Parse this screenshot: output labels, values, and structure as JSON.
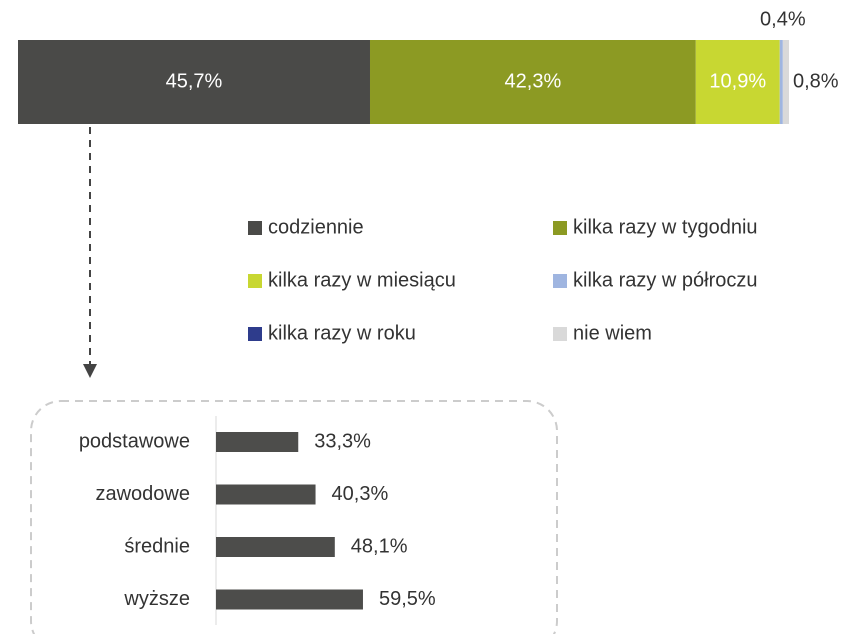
{
  "chart_data": [
    {
      "type": "stacked-bar",
      "series": [
        {
          "name": "codziennie",
          "color": "#4a4a48",
          "values": [
            45.7
          ],
          "value_labels": [
            "45,7%"
          ]
        },
        {
          "name": "kilka razy w tygodniu",
          "color": "#8c9a23",
          "values": [
            42.3
          ],
          "value_labels": [
            "42,3%"
          ]
        },
        {
          "name": "kilka razy w miesiącu",
          "color": "#c8d732",
          "values": [
            10.9
          ],
          "value_labels": [
            "10,9%"
          ]
        },
        {
          "name": "kilka razy w półroczu",
          "color": "#9fb5e0",
          "values": [
            0.4
          ],
          "value_labels": [
            "0,4%"
          ]
        },
        {
          "name": "kilka razy w roku",
          "color": "#2e3c8c",
          "values": [
            0
          ],
          "value_labels": [
            null
          ]
        },
        {
          "name": "nie wiem",
          "color": "#d9d9d9",
          "values": [
            0.8
          ],
          "value_labels": [
            "0,8%"
          ]
        }
      ]
    },
    {
      "type": "barh",
      "categories": [
        "podstawowe",
        "zawodowe",
        "średnie",
        "wyższe"
      ],
      "values": [
        33.3,
        40.3,
        48.1,
        59.5
      ],
      "value_labels": [
        "33,3%",
        "40,3%",
        "48,1%",
        "59,5%"
      ],
      "color": "#4d4d4b"
    }
  ]
}
